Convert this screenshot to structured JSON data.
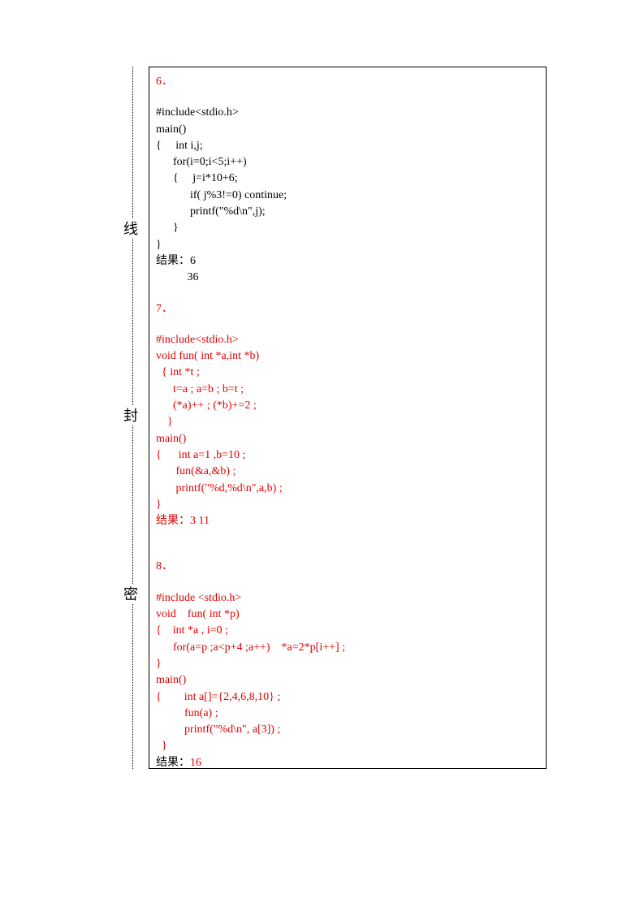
{
  "binding": {
    "char1": "密",
    "char2": "封",
    "char3": "线"
  },
  "colors": {
    "black": "#000000",
    "red": "#e00000",
    "bg": "#ffffff"
  },
  "fontsize": 14,
  "q6": {
    "num": "6．",
    "num_color": "#e00000",
    "lines": [
      "#include<stdio.h>",
      "main()",
      "{     int i,j;",
      "      for(i=0;i<5;i++)",
      "      {     j=i*10+6;",
      "            if( j%3!=0) continue;",
      "            printf(\"%d\\n\",j);",
      "      }",
      "}",
      "结果：6",
      "           36"
    ],
    "lines_color": "#000000"
  },
  "q7": {
    "num": "7．",
    "num_color": "#e00000",
    "lines": [
      "#include<stdio.h>",
      "void fun( int *a,int *b)",
      "  { int *t ;",
      "      t=a ; a=b ; b=t ;",
      "      (*a)++ ; (*b)+=2 ;",
      "    }",
      "main()",
      "{      int a=1 ,b=10 ;",
      "       fun(&a,&b) ;",
      "       printf(\"%d,%d\\n\",a,b) ;",
      "}",
      "结果：3 11"
    ],
    "lines_color": "#e00000"
  },
  "q8": {
    "num": "8．",
    "num_color": "#e00000",
    "lines": [
      "#include <stdio.h>",
      "void    fun( int *p)",
      "{    int *a , i=0 ;",
      "      for(a=p ;a<p+4 ;a++)    *a=2*p[i++] ;",
      "}",
      "main()",
      "{        int a[]={2,4,6,8,10} ;",
      "          fun(a) ;",
      "          printf(\"%d\\n\", a[3]) ;",
      "  }"
    ],
    "lines_color": "#e00000",
    "result_label": "结果：",
    "result_value": "16",
    "result_label_color": "#000000",
    "result_value_color": "#e00000"
  }
}
